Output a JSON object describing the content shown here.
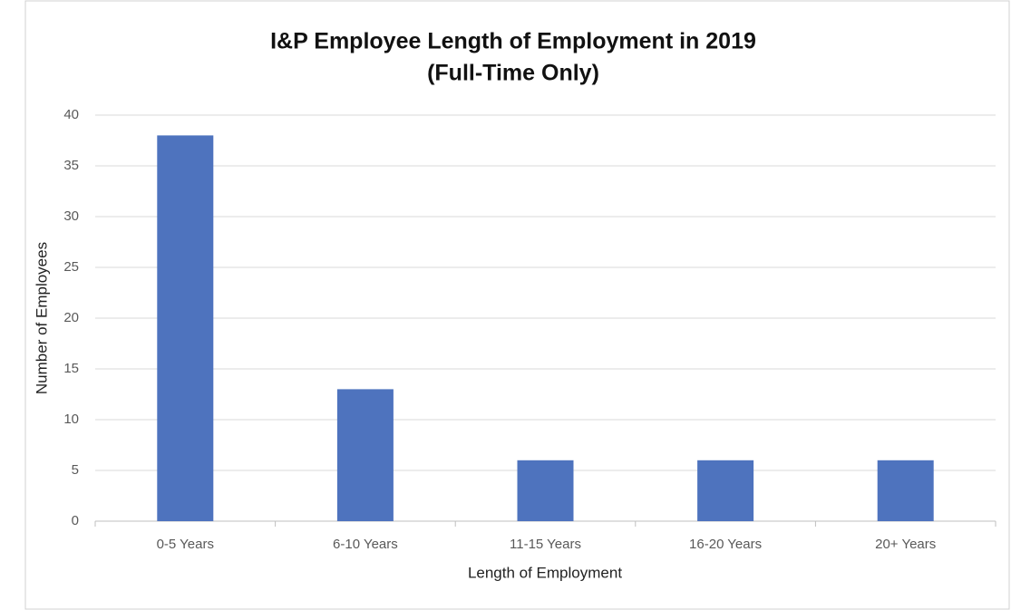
{
  "chart_data": {
    "type": "bar",
    "title": [
      "I&P Employee Length of Employment in 2019",
      "(Full-Time Only)"
    ],
    "categories": [
      "0-5 Years",
      "6-10 Years",
      "11-15 Years",
      "16-20 Years",
      "20+ Years"
    ],
    "values": [
      38,
      13,
      6,
      6,
      6
    ],
    "color": "#4e73be",
    "xlabel": "Length of Employment",
    "ylabel": "Number of Employees",
    "ylim": [
      0,
      40
    ],
    "yticks": [
      0,
      5,
      10,
      15,
      20,
      25,
      30,
      35,
      40
    ],
    "grid": true
  }
}
